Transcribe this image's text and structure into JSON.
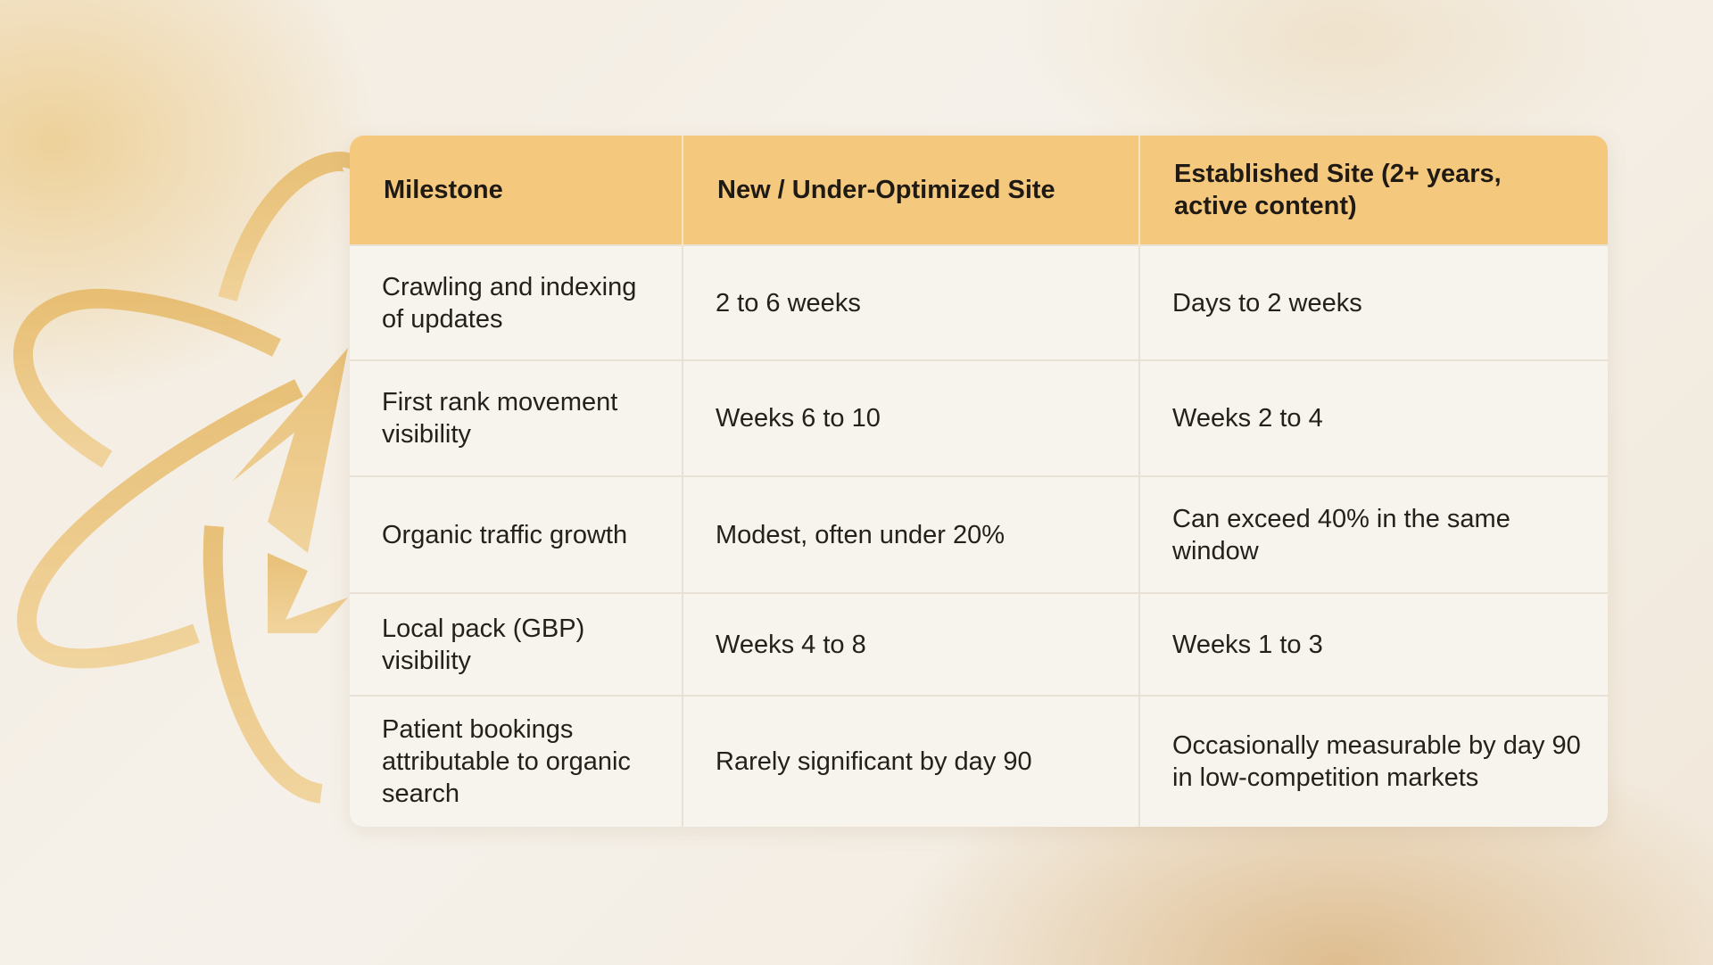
{
  "table": {
    "headers": [
      "Milestone",
      "New / Under-Optimized Site",
      "Established Site (2+ years, active content)"
    ],
    "rows": [
      [
        "Crawling and indexing of updates",
        "2 to 6 weeks",
        "Days to 2 weeks"
      ],
      [
        "First rank movement visibility",
        "Weeks 6 to 10",
        "Weeks 2 to 4"
      ],
      [
        "Organic traffic growth",
        "Modest, often under 20%",
        "Can exceed 40% in the same window"
      ],
      [
        "Local pack (GBP) visibility",
        "Weeks 4 to 8",
        "Weeks 1 to 3"
      ],
      [
        "Patient bookings attributable to organic search",
        "Rarely significant by day 90",
        "Occasionally measurable by day 90 in low-competition markets"
      ]
    ]
  },
  "colors": {
    "header_bg": "#f4c97d",
    "emblem": "#ecc47a",
    "body_bg": "#f7f4ee"
  },
  "icons": {
    "background_logo": "atom-orbit-logo-icon"
  }
}
